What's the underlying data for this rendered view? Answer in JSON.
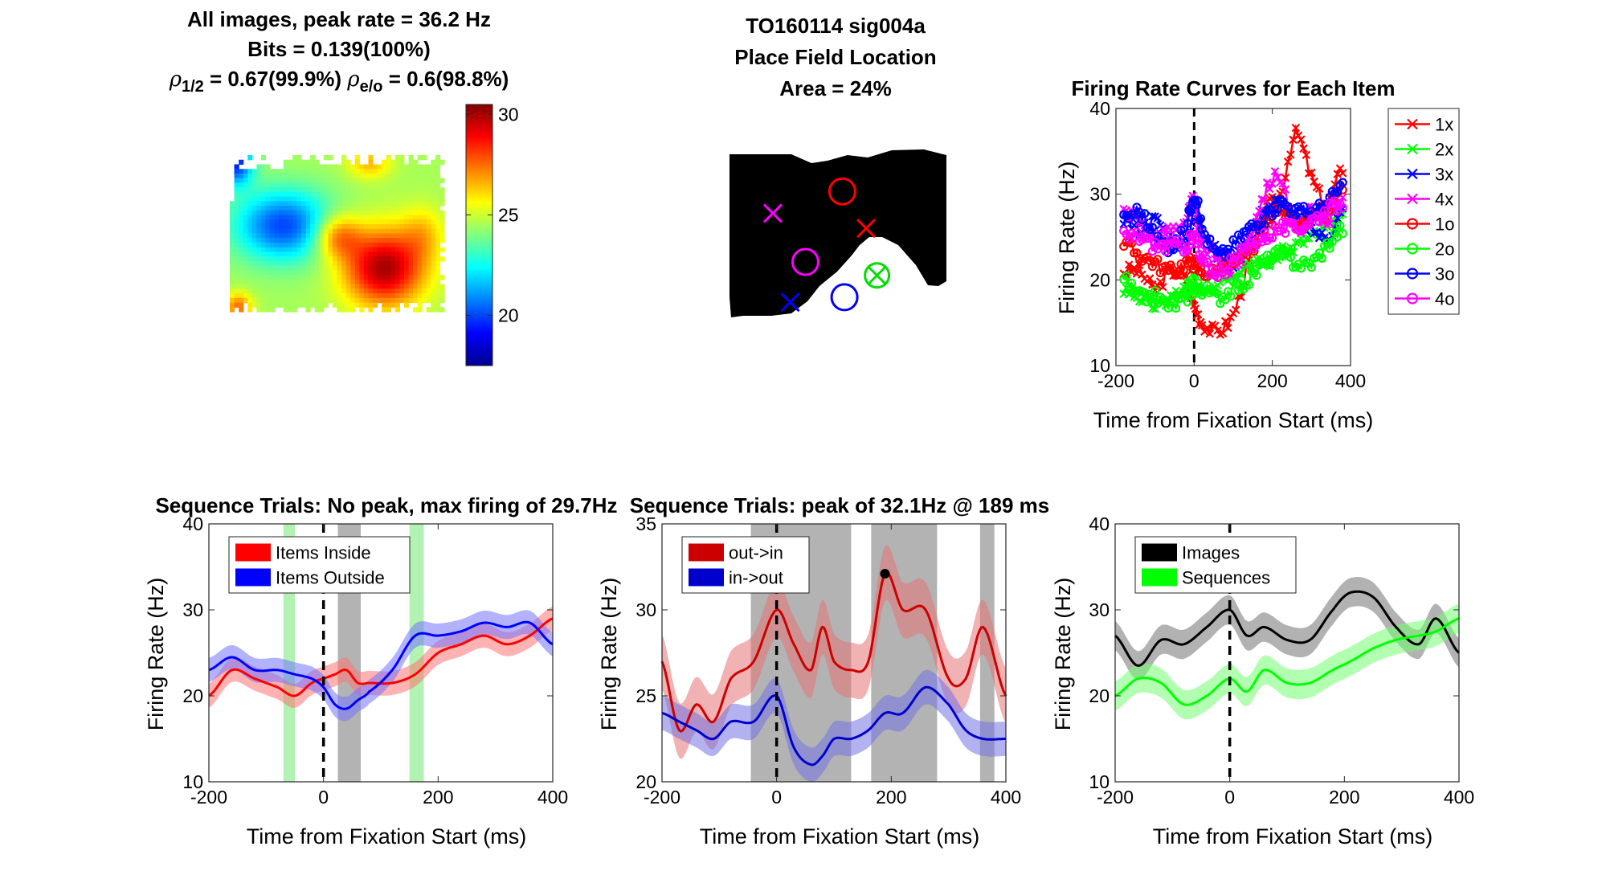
{
  "panels": {
    "heatmap": {
      "title_lines": [
        "All images, peak rate = 36.2 Hz",
        "Bits = 0.139(100%)"
      ],
      "rho_line": {
        "rho1_sub": "1/2",
        "rho1_value": " = 0.67(99.9%) ",
        "rho2_sub": "e/o",
        "rho2_value": " = 0.6(98.8%)"
      },
      "colorbar": {
        "range": [
          17.5,
          30.5
        ],
        "ticks": [
          "30",
          "25",
          "20"
        ],
        "tick_values": [
          30,
          25,
          20
        ]
      }
    },
    "place_field": {
      "title_lines": [
        "TO160114 sig004a",
        "Place Field Location",
        "Area = 24%"
      ],
      "markers": [
        {
          "item": "4x",
          "symbol": "x",
          "color": "#ff00ff",
          "nx": 0.2,
          "ny": 0.38
        },
        {
          "item": "1o",
          "symbol": "o",
          "color": "#ff0000",
          "nx": 0.52,
          "ny": 0.25
        },
        {
          "item": "1x",
          "symbol": "x",
          "color": "#ff0000",
          "nx": 0.63,
          "ny": 0.47
        },
        {
          "item": "4o",
          "symbol": "o",
          "color": "#ff00ff",
          "nx": 0.35,
          "ny": 0.67
        },
        {
          "item": "2ox",
          "symbol": "ox",
          "color": "#00dd00",
          "nx": 0.68,
          "ny": 0.75
        },
        {
          "item": "3x",
          "symbol": "x",
          "color": "#0000ff",
          "nx": 0.28,
          "ny": 0.91
        },
        {
          "item": "3o",
          "symbol": "o",
          "color": "#0000ff",
          "nx": 0.53,
          "ny": 0.88
        }
      ]
    },
    "item_curves": {
      "title": "Firing Rate Curves for Each Item",
      "xlabel": "Time from Fixation Start (ms)",
      "ylabel": "Firing Rate (Hz)"
    },
    "seq1": {
      "title": "Sequence Trials: No peak, max firing of 29.7Hz",
      "xlabel": "Time from Fixation Start (ms)",
      "ylabel": "Firing Rate (Hz)"
    },
    "seq2": {
      "title": "Sequence Trials: peak of 32.1Hz @ 189 ms",
      "xlabel": "Time from Fixation Start (ms)",
      "ylabel": "Firing Rate (Hz)"
    },
    "img_seq": {
      "xlabel": "Time from Fixation Start (ms)",
      "ylabel": "Firing Rate (Hz)"
    }
  },
  "chart_data": [
    {
      "type": "heatmap",
      "id": "firing-rate-map",
      "title": "All images, peak rate = 36.2 Hz",
      "colorbar_ticks": [
        20,
        25,
        30
      ],
      "clim": [
        17.5,
        30.5
      ],
      "colormap": "jet"
    },
    {
      "type": "line",
      "id": "item-curves",
      "title": "Firing Rate Curves for Each Item",
      "xlabel": "Time from Fixation Start (ms)",
      "ylabel": "Firing Rate (Hz)",
      "xlim": [
        -200,
        400
      ],
      "ylim": [
        10,
        40
      ],
      "xticks": [
        -200,
        0,
        200,
        400
      ],
      "yticks": [
        10,
        20,
        30,
        40
      ],
      "x": [
        -180,
        -140,
        -100,
        -60,
        -20,
        0,
        20,
        60,
        100,
        140,
        180,
        220,
        260,
        300,
        340,
        380
      ],
      "series": [
        {
          "name": "1x",
          "color": "#ff0000",
          "marker": "x",
          "values": [
            21,
            21,
            19,
            21,
            20,
            17,
            15,
            14,
            16,
            22,
            28,
            30,
            37,
            32,
            29,
            33
          ]
        },
        {
          "name": "2x",
          "color": "#00ff00",
          "marker": "x",
          "values": [
            19,
            18,
            17,
            18,
            19,
            20,
            19,
            20,
            21,
            22,
            22,
            23,
            24,
            25,
            26,
            27
          ]
        },
        {
          "name": "3x",
          "color": "#0000ff",
          "marker": "x",
          "values": [
            27,
            26,
            27,
            25,
            24,
            28,
            26,
            23,
            22,
            25,
            28,
            29,
            27,
            26,
            25,
            28
          ]
        },
        {
          "name": "4x",
          "color": "#ff00ff",
          "marker": "x",
          "values": [
            28,
            27,
            25,
            26,
            27,
            29,
            24,
            23,
            21,
            25,
            30,
            32,
            26,
            28,
            27,
            30
          ]
        },
        {
          "name": "1o",
          "color": "#ff0000",
          "marker": "o",
          "values": [
            24,
            23,
            22,
            21,
            22,
            22,
            21,
            21,
            22,
            23,
            26,
            28,
            27,
            27,
            28,
            31
          ]
        },
        {
          "name": "2o",
          "color": "#00ff00",
          "marker": "o",
          "values": [
            20,
            18,
            18,
            17,
            18,
            19,
            19,
            18,
            19,
            20,
            22,
            23,
            22,
            22,
            24,
            26
          ]
        },
        {
          "name": "3o",
          "color": "#0000ff",
          "marker": "o",
          "values": [
            27,
            28,
            25,
            24,
            26,
            30,
            26,
            23,
            24,
            26,
            27,
            29,
            28,
            28,
            29,
            31
          ]
        },
        {
          "name": "4o",
          "color": "#ff00ff",
          "marker": "o",
          "values": [
            25,
            25,
            24,
            24,
            24,
            25,
            22,
            21,
            22,
            24,
            25,
            26,
            26,
            27,
            28,
            29
          ]
        }
      ],
      "legend": "top-right"
    },
    {
      "type": "area",
      "id": "sequence-inside-outside",
      "title": "Sequence Trials: No peak, max firing of 29.7Hz",
      "xlabel": "Time from Fixation Start (ms)",
      "ylabel": "Firing Rate (Hz)",
      "xlim": [
        -200,
        400
      ],
      "ylim": [
        10,
        40
      ],
      "xticks": [
        -200,
        0,
        200,
        400
      ],
      "yticks": [
        10,
        20,
        30,
        40
      ],
      "x": [
        -200,
        -160,
        -120,
        -80,
        -50,
        -20,
        0,
        20,
        40,
        60,
        80,
        120,
        160,
        200,
        240,
        280,
        320,
        360,
        400
      ],
      "series": [
        {
          "name": "Items Inside",
          "color": "#ff0000",
          "values": [
            20,
            23,
            22,
            21,
            20,
            21.5,
            22,
            22.5,
            23,
            21.5,
            21.5,
            21.5,
            22.5,
            25,
            26,
            27,
            26,
            27,
            29
          ]
        },
        {
          "name": "Items Outside",
          "color": "#0000ff",
          "values": [
            23,
            24.5,
            23,
            23,
            22.5,
            22,
            21,
            19,
            18.5,
            19.5,
            20.5,
            23,
            27,
            27,
            27.5,
            28.5,
            28,
            28.5,
            26
          ]
        }
      ],
      "sem_band": 1.4,
      "shaded_regions": [
        {
          "range": [
            -70,
            -50
          ],
          "color": "#b2f2b2"
        },
        {
          "range": [
            25,
            65
          ],
          "color": "#b3b3b3"
        },
        {
          "range": [
            150,
            175
          ],
          "color": "#b2f2b2"
        }
      ],
      "legend": "top-left"
    },
    {
      "type": "area",
      "id": "sequence-direction",
      "title": "Sequence Trials: peak of 32.1Hz @ 189 ms",
      "xlabel": "Time from Fixation Start (ms)",
      "ylabel": "Firing Rate (Hz)",
      "xlim": [
        -200,
        400
      ],
      "ylim": [
        20,
        35
      ],
      "xticks": [
        -200,
        0,
        200,
        400
      ],
      "yticks": [
        20,
        25,
        30,
        35
      ],
      "x": [
        -200,
        -170,
        -140,
        -110,
        -80,
        -40,
        0,
        30,
        60,
        80,
        100,
        130,
        160,
        189,
        220,
        260,
        300,
        330,
        360,
        400
      ],
      "series": [
        {
          "name": "out->in",
          "color": "#cc0000",
          "values": [
            27,
            23,
            24.5,
            23.5,
            26,
            27,
            30,
            28,
            26.5,
            29,
            27,
            26.5,
            27,
            32.1,
            30,
            30,
            26,
            26,
            29,
            25
          ]
        },
        {
          "name": "in->out",
          "color": "#0000cc",
          "values": [
            24,
            23.5,
            23,
            22.5,
            23.5,
            23.5,
            25,
            22,
            21,
            21.5,
            22.5,
            22.5,
            23,
            24,
            24,
            25.5,
            24.5,
            23,
            22.5,
            22.5
          ]
        }
      ],
      "band": {
        "out->in": 1.6,
        "in->out": 1.0
      },
      "peak_marker": {
        "x": 189,
        "y": 32.1
      },
      "shaded_regions": [
        {
          "range": [
            -45,
            130
          ],
          "color": "#b3b3b3"
        },
        {
          "range": [
            165,
            280
          ],
          "color": "#b3b3b3"
        },
        {
          "range": [
            355,
            380
          ],
          "color": "#b3b3b3"
        }
      ],
      "legend": "top-left"
    },
    {
      "type": "area",
      "id": "images-vs-sequences",
      "xlabel": "Time from Fixation Start (ms)",
      "ylabel": "Firing Rate (Hz)",
      "xlim": [
        -200,
        400
      ],
      "ylim": [
        10,
        40
      ],
      "xticks": [
        -200,
        0,
        200,
        400
      ],
      "yticks": [
        10,
        20,
        30,
        40
      ],
      "x": [
        -200,
        -160,
        -120,
        -80,
        -40,
        0,
        30,
        60,
        100,
        140,
        180,
        210,
        250,
        290,
        330,
        360,
        400
      ],
      "series": [
        {
          "name": "Images",
          "color": "#000000",
          "values": [
            27,
            23.5,
            26.5,
            26,
            28,
            30,
            27,
            28,
            26.5,
            26.5,
            30,
            32,
            31.5,
            28,
            26,
            29,
            25
          ]
        },
        {
          "name": "Sequences",
          "color": "#00ff00",
          "values": [
            20,
            22,
            21.5,
            19,
            20,
            22,
            20.5,
            23,
            21.5,
            21.5,
            23,
            24,
            25.5,
            26.5,
            27,
            27.5,
            29
          ]
        }
      ],
      "sem_band": 1.7,
      "legend": "top-left"
    }
  ]
}
